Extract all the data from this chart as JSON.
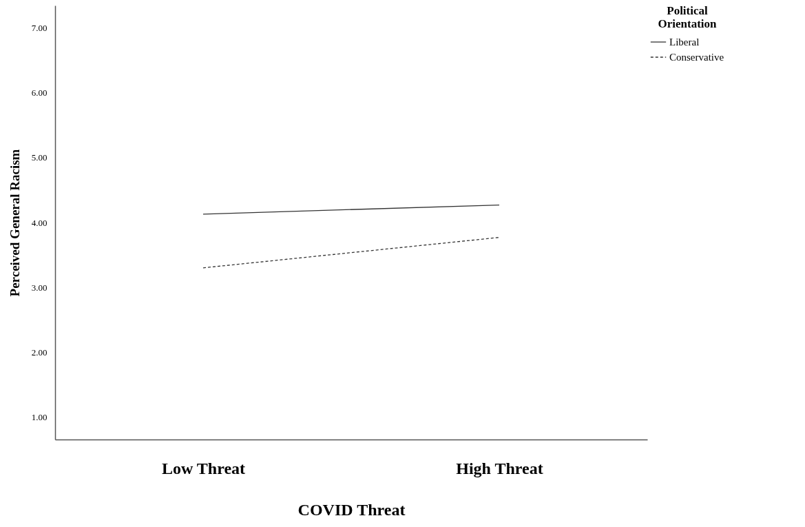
{
  "chart_data": {
    "type": "line",
    "xlabel": "COVID Threat",
    "ylabel": "Perceived General Racism",
    "legend_title": "Political Orientation",
    "categories": [
      "Low Threat",
      "High Threat"
    ],
    "series": [
      {
        "name": "Liberal",
        "color": "#333333",
        "line_style": "solid",
        "values": [
          4.13,
          4.27
        ]
      },
      {
        "name": "Conservative",
        "color": "#333333",
        "line_style": "dashed",
        "values": [
          3.3,
          3.77
        ]
      }
    ],
    "ylim": [
      0.65,
      7.35
    ],
    "yticks": [
      {
        "value": 1,
        "label": "1.00"
      },
      {
        "value": 2,
        "label": "2.00"
      },
      {
        "value": 3,
        "label": "3.00"
      },
      {
        "value": 4,
        "label": "4.00"
      },
      {
        "value": 5,
        "label": "5.00"
      },
      {
        "value": 6,
        "label": "6.00"
      },
      {
        "value": 7,
        "label": "7.00"
      }
    ],
    "grid": false,
    "legend": "top right",
    "marker": "none"
  }
}
